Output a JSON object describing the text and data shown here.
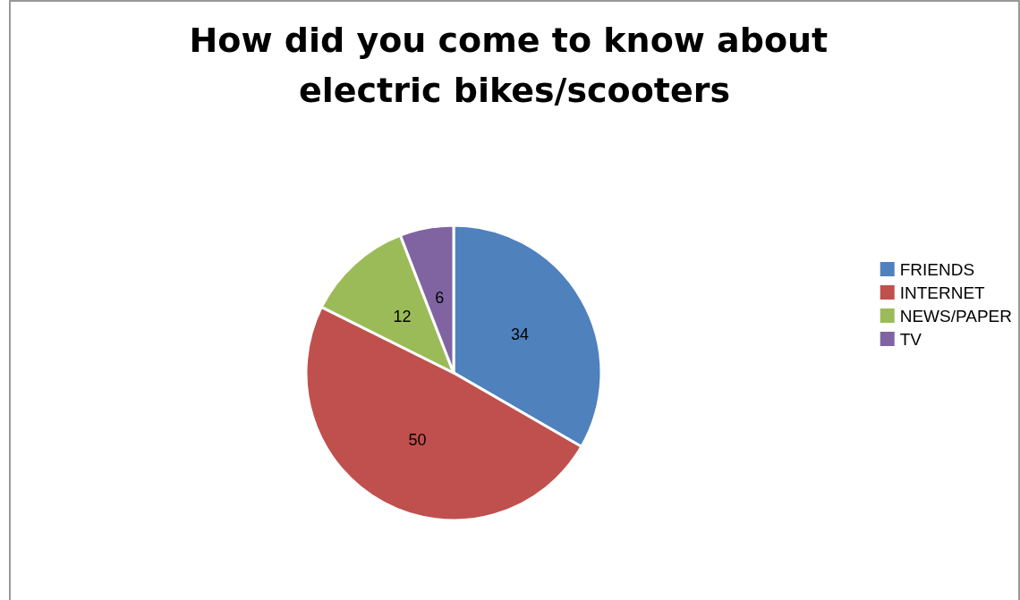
{
  "chart_data": {
    "type": "pie",
    "title": "How did you come to know about electric bikes/scooters",
    "categories": [
      "FRIENDS",
      "INTERNET",
      "NEWS/PAPER",
      "TV"
    ],
    "values": [
      34,
      50,
      12,
      6
    ],
    "colors": [
      "#4f81bd",
      "#c0504d",
      "#9bbb59",
      "#8064a2"
    ],
    "data_labels": true,
    "legend": "right"
  }
}
